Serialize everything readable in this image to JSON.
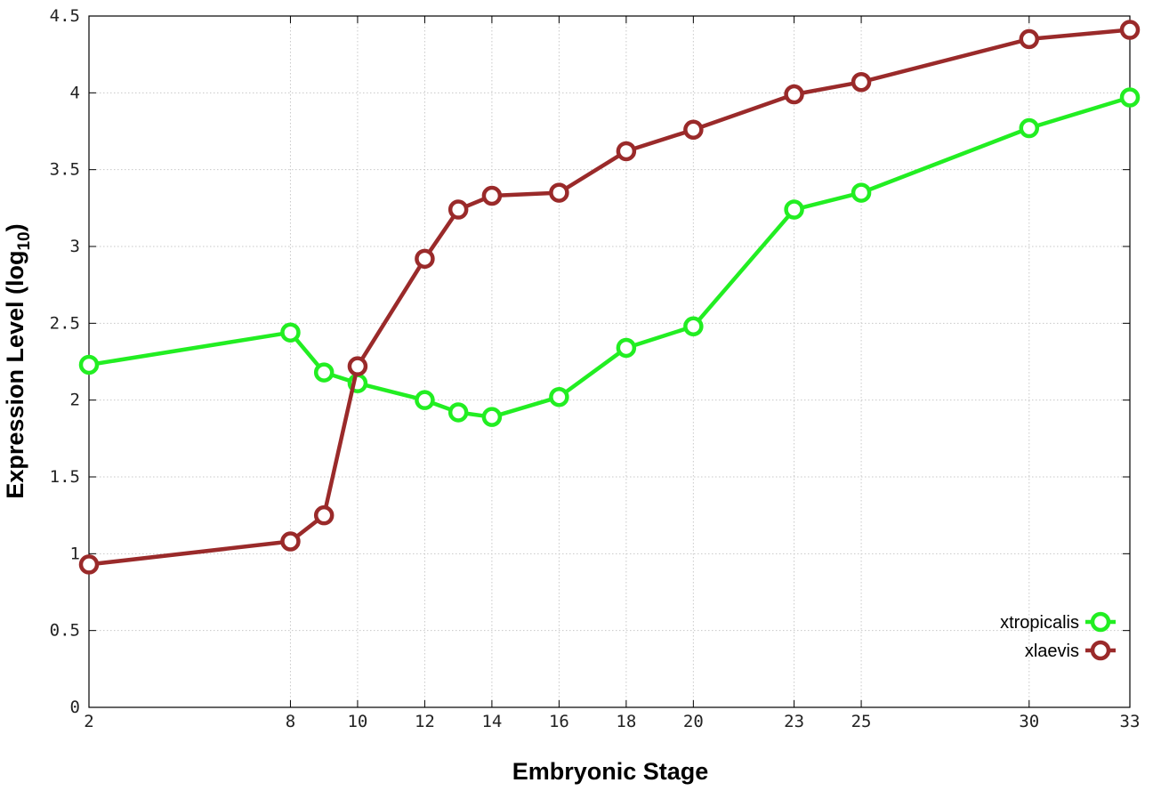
{
  "chart_data": {
    "type": "line",
    "xlabel": "Embryonic Stage",
    "ylabel": "Expression Level (log",
    "ylabel_subscript": "10",
    "ylabel_suffix": ")",
    "x_categories": [
      2,
      8,
      9,
      10,
      12,
      13,
      14,
      16,
      18,
      20,
      23,
      25,
      30,
      33
    ],
    "x_tick_labels": [
      "2",
      "8",
      "10",
      "12",
      "14",
      "16",
      "18",
      "20",
      "23",
      "25",
      "30",
      "33"
    ],
    "y_ticks": [
      0,
      0.5,
      1,
      1.5,
      2,
      2.5,
      3,
      3.5,
      4,
      4.5
    ],
    "y_tick_labels": [
      "0",
      "0.5",
      "1",
      "1.5",
      "2",
      "2.5",
      "3",
      "3.5",
      "4",
      "4.5"
    ],
    "ylim": [
      0,
      4.5
    ],
    "grid": true,
    "legend_position": "bottom-right",
    "series": [
      {
        "name": "xtropicalis",
        "color": "#22ee22",
        "marker": "circle-open",
        "x": [
          2,
          8,
          9,
          10,
          12,
          13,
          14,
          16,
          18,
          20,
          23,
          25,
          30,
          33
        ],
        "values": [
          2.23,
          2.44,
          2.18,
          2.11,
          2.0,
          1.92,
          1.89,
          2.02,
          2.34,
          2.48,
          3.24,
          3.35,
          3.77,
          3.97
        ]
      },
      {
        "name": "xlaevis",
        "color": "#9a2a2a",
        "marker": "circle-open",
        "x": [
          2,
          8,
          9,
          10,
          12,
          13,
          14,
          16,
          18,
          20,
          23,
          25,
          30,
          33
        ],
        "values": [
          0.93,
          1.08,
          1.25,
          2.22,
          2.92,
          3.24,
          3.33,
          3.35,
          3.62,
          3.76,
          3.99,
          4.07,
          4.35,
          4.41
        ]
      }
    ]
  }
}
